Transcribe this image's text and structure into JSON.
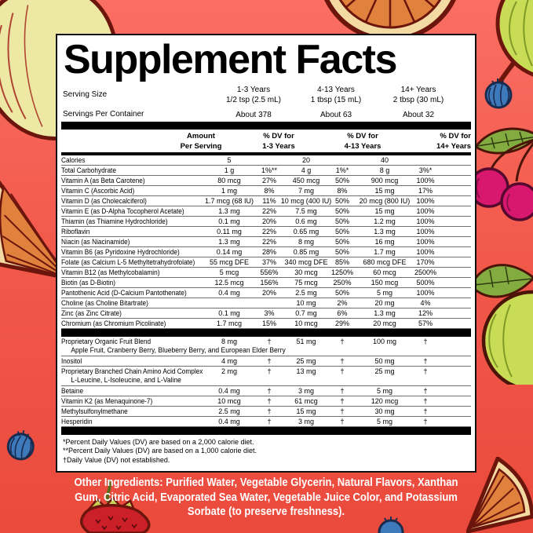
{
  "title": "Supplement Facts",
  "colors": {
    "background_top": "#FA6E63",
    "background_bottom": "#EA4A3C",
    "panel_background": "#FFFFFF",
    "panel_text": "#000000",
    "divider_bar": "#000000",
    "ingredients_text": "#FFFFFF"
  },
  "serving": {
    "serving_size_label": "Serving Size",
    "servings_per_container_label": "Servings Per Container",
    "columns": [
      {
        "age": "1-3 Years",
        "size": "1/2 tsp (2.5 mL)",
        "servings": "About 378"
      },
      {
        "age": "4-13 Years",
        "size": "1 tbsp (15 mL)",
        "servings": "About 63"
      },
      {
        "age": "14+ Years",
        "size": "2 tbsp (30 mL)",
        "servings": "About 32"
      }
    ]
  },
  "table": {
    "headers": [
      {
        "line1": "Amount",
        "line2": "Per Serving"
      },
      {
        "line1": "% DV for",
        "line2": "1-3 Years"
      },
      {
        "line1": "% DV for",
        "line2": "4-13 Years"
      },
      {
        "line1": "% DV for",
        "line2": "14+ Years"
      }
    ],
    "rows": [
      {
        "name": "Calories",
        "values": [
          "5",
          "",
          "20",
          "",
          "40",
          ""
        ]
      },
      {
        "name": "Total Carbohydrate",
        "values": [
          "1 g",
          "1%**",
          "4 g",
          "1%*",
          "8 g",
          "3%*"
        ]
      },
      {
        "name": "Vitamin A (as Beta Carotene)",
        "values": [
          "80 mcg",
          "27%",
          "450 mcg",
          "50%",
          "900 mcg",
          "100%"
        ]
      },
      {
        "name": "Vitamin C (Ascorbic Acid)",
        "values": [
          "1 mg",
          "8%",
          "7 mg",
          "8%",
          "15 mg",
          "17%"
        ]
      },
      {
        "name": "Vitamin D (as Cholecalciferol)",
        "values": [
          "1.7 mcg (68 IU)",
          "11%",
          "10 mcg (400 IU)",
          "50%",
          "20 mcg (800 IU)",
          "100%"
        ]
      },
      {
        "name": "Vitamin E (as D-Alpha Tocopherol Acetate)",
        "values": [
          "1.3 mg",
          "22%",
          "7.5 mg",
          "50%",
          "15 mg",
          "100%"
        ]
      },
      {
        "name": "Thiamin (as Thiamine Hydrochloride)",
        "values": [
          "0.1 mg",
          "20%",
          "0.6 mg",
          "50%",
          "1.2 mg",
          "100%"
        ]
      },
      {
        "name": "Riboflavin",
        "values": [
          "0.11 mg",
          "22%",
          "0.65 mg",
          "50%",
          "1.3 mg",
          "100%"
        ]
      },
      {
        "name": "Niacin (as Niacinamide)",
        "values": [
          "1.3 mg",
          "22%",
          "8 mg",
          "50%",
          "16 mg",
          "100%"
        ]
      },
      {
        "name": "Vitamin B6 (as Pyridoxine Hydrochloride)",
        "values": [
          "0.14 mg",
          "28%",
          "0.85 mg",
          "50%",
          "1.7 mg",
          "100%"
        ]
      },
      {
        "name": "Folate (as Calcium L-5 Methyltetrahydrofolate)",
        "values": [
          "55 mcg DFE",
          "37%",
          "340 mcg DFE",
          "85%",
          "680 mcg DFE",
          "170%"
        ]
      },
      {
        "name": "Vitamin B12 (as Methylcobalamin)",
        "values": [
          "5 mcg",
          "556%",
          "30 mcg",
          "1250%",
          "60 mcg",
          "2500%"
        ]
      },
      {
        "name": "Biotin (as D-Biotin)",
        "values": [
          "12.5 mcg",
          "156%",
          "75 mcg",
          "250%",
          "150 mcg",
          "500%"
        ]
      },
      {
        "name": "Pantothenic Acid (D-Calcium Pantothenate)",
        "values": [
          "0.4 mg",
          "20%",
          "2.5 mg",
          "50%",
          "5 mg",
          "100%"
        ]
      },
      {
        "name": "Choline (as Choline Bitartrate)",
        "values": [
          "",
          "",
          "10 mg",
          "2%",
          "20 mg",
          "4%"
        ]
      },
      {
        "name": "Zinc (as Zinc Citrate)",
        "values": [
          "0.1 mg",
          "3%",
          "0.7 mg",
          "6%",
          "1.3 mg",
          "12%"
        ]
      },
      {
        "name": "Chromium (as Chromium Picolinate)",
        "values": [
          "1.7 mcg",
          "15%",
          "10 mcg",
          "29%",
          "20 mcg",
          "57%"
        ]
      },
      {
        "name": "Proprietary Organic Fruit Blend",
        "divider_before": true,
        "sub": "Apple Fruit, Cranberry Berry, Blueberry Berry, and European Elder Berry",
        "values": [
          "8 mg",
          "†",
          "51 mg",
          "†",
          "100 mg",
          "†"
        ]
      },
      {
        "name": "Inositol",
        "values": [
          "4 mg",
          "†",
          "25 mg",
          "†",
          "50 mg",
          "†"
        ]
      },
      {
        "name": "Proprietary Branched Chain Amino Acid Complex",
        "sub": "L-Leucine, L-Isoleucine, and L-Valine",
        "values": [
          "2 mg",
          "†",
          "13 mg",
          "†",
          "25 mg",
          "†"
        ]
      },
      {
        "name": "Betaine",
        "values": [
          "0.4 mg",
          "†",
          "3 mg",
          "†",
          "5 mg",
          "†"
        ]
      },
      {
        "name": "Vitamin K2 (as Menaquinone-7)",
        "values": [
          "10 mcg",
          "†",
          "61 mcg",
          "†",
          "120 mcg",
          "†"
        ]
      },
      {
        "name": "Methylsulfonylmethane",
        "values": [
          "2.5 mg",
          "†",
          "15 mg",
          "†",
          "30 mg",
          "†"
        ]
      },
      {
        "name": "Hesperidin",
        "values": [
          "0.4 mg",
          "†",
          "3 mg",
          "†",
          "5 mg",
          "†"
        ]
      }
    ]
  },
  "footnotes": [
    "*Percent Daily Values (DV) are based on a 2,000 calorie diet.",
    "**Percent Daily Values (DV) are based on a 1,000 calorie diet.",
    "†Daily Value (DV) not established."
  ],
  "other_ingredients": "Other Ingredients: Purified Water, Vegetable Glycerin, Natural Flavors, Xanthan Gum, Citric Acid, Evaporated Sea Water, Vegetable Juice Color, and Potassium Sorbate (to preserve freshness).",
  "decorations": [
    "pale-apple",
    "orange-slice",
    "green-apple",
    "blueberry",
    "cherries",
    "strawberry"
  ]
}
